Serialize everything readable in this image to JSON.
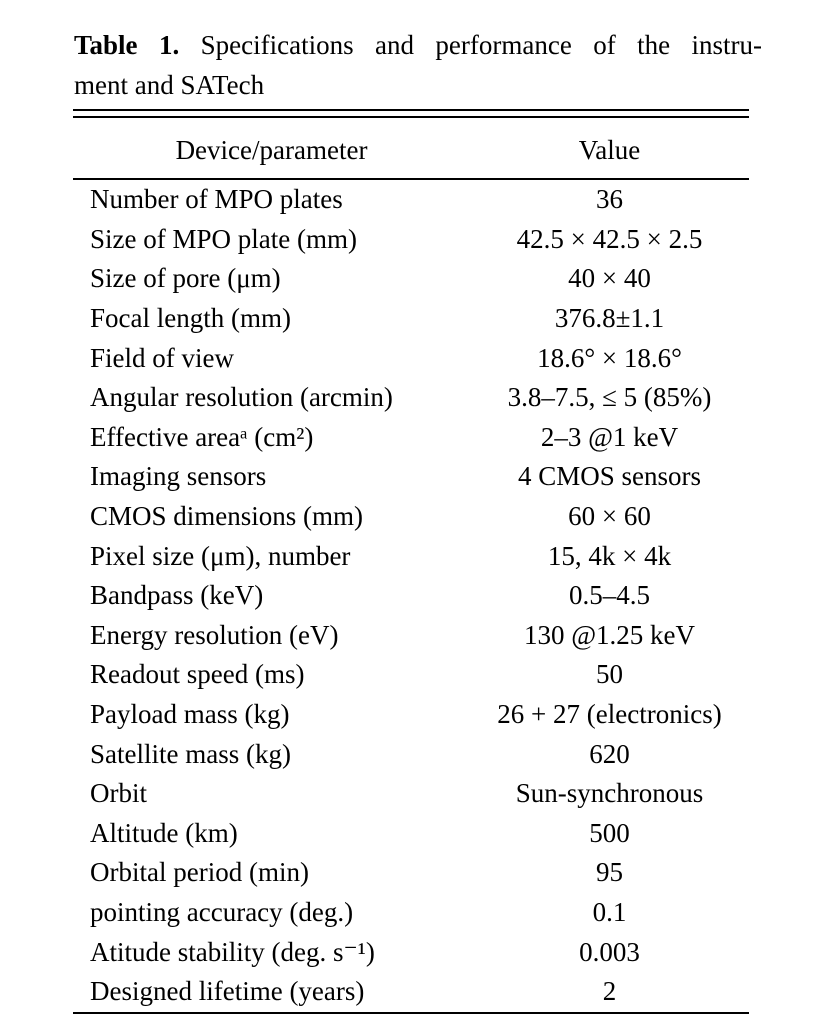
{
  "caption": {
    "label": "Table 1.",
    "line1_rest": "Specifications and performance of the instru-",
    "line2": "ment and SATech"
  },
  "table": {
    "col_headers": {
      "param": "Device/parameter",
      "value": "Value"
    },
    "rows": [
      {
        "param": "Number of MPO plates",
        "value": "36"
      },
      {
        "param": "Size of MPO plate (mm)",
        "value": "42.5 × 42.5 × 2.5"
      },
      {
        "param": "Size of pore (μm)",
        "value": "40 × 40"
      },
      {
        "param": "Focal length (mm)",
        "value": "376.8±1.1"
      },
      {
        "param": "Field of view",
        "value": "18.6° × 18.6°"
      },
      {
        "param": "Angular resolution (arcmin)",
        "value": "3.8–7.5, ≤ 5 (85%)"
      },
      {
        "param": "Effective areaᵃ (cm²)",
        "value": "2–3 @1 keV"
      },
      {
        "param": "Imaging sensors",
        "value": "4 CMOS sensors"
      },
      {
        "param": "CMOS dimensions (mm)",
        "value": "60 × 60"
      },
      {
        "param": "Pixel size (μm), number",
        "value": "15, 4k × 4k"
      },
      {
        "param": "Bandpass (keV)",
        "value": "0.5–4.5"
      },
      {
        "param": "Energy resolution (eV)",
        "value": "130 @1.25 keV"
      },
      {
        "param": "Readout speed (ms)",
        "value": "50"
      },
      {
        "param": "Payload mass (kg)",
        "value": "26 + 27 (electronics)"
      },
      {
        "param": "Satellite mass (kg)",
        "value": "620"
      },
      {
        "param": "Orbit",
        "value": "Sun-synchronous"
      },
      {
        "param": "Altitude (km)",
        "value": "500"
      },
      {
        "param": "Orbital period (min)",
        "value": "95"
      },
      {
        "param": "pointing accuracy (deg.)",
        "value": "0.1"
      },
      {
        "param": "Atitude stability (deg. s⁻¹)",
        "value": "0.003"
      },
      {
        "param": "Designed lifetime (years)",
        "value": "2"
      }
    ]
  },
  "colors": {
    "text": "#000000",
    "background": "#ffffff",
    "rule": "#000000"
  }
}
